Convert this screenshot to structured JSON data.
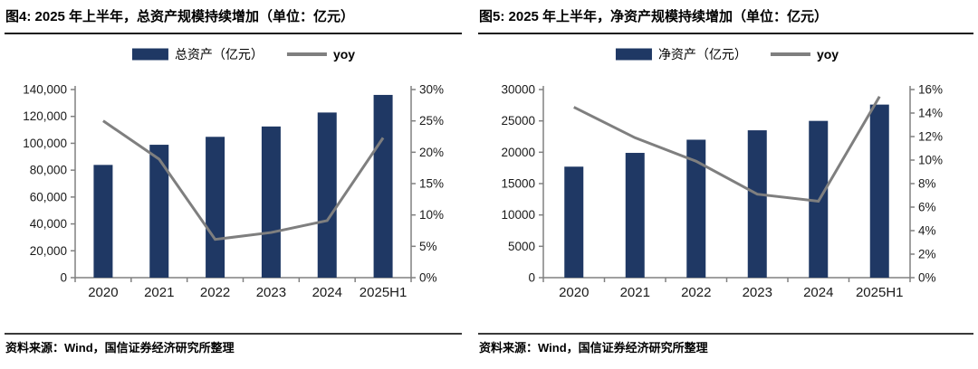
{
  "colors": {
    "bar": "#1f3864",
    "line": "#7f7f7f",
    "axis": "#808080",
    "tick_text": "#1a1a1a"
  },
  "figures": [
    {
      "source": "资料来源：Wind，国信证券经济研究所整理"
    },
    {
      "source": "资料来源：Wind，国信证券经济研究所整理"
    }
  ],
  "chart_data": [
    {
      "type": "combo",
      "title": "图4: 2025 年上半年，总资产规模持续增加（单位：亿元）",
      "categories": [
        "2020",
        "2021",
        "2022",
        "2023",
        "2024",
        "2025H1"
      ],
      "series": [
        {
          "name": "总资产（亿元）",
          "type": "bar",
          "axis": "left",
          "values": [
            83900,
            98900,
            104800,
            112500,
            122900,
            136000
          ]
        },
        {
          "name": "yoy",
          "type": "line",
          "axis": "right",
          "values": [
            25.0,
            18.9,
            6.1,
            7.2,
            9.1,
            22.3
          ],
          "unit": "%"
        }
      ],
      "left_axis": {
        "min": 0,
        "max": 140000,
        "step": 20000,
        "comma": true
      },
      "right_axis": {
        "min": 0,
        "max": 30,
        "step": 5,
        "unit": "%"
      },
      "legend_position": "top",
      "grid": false
    },
    {
      "type": "combo",
      "title": "图5: 2025 年上半年，净资产规模持续增加（单位：亿元）",
      "categories": [
        "2020",
        "2021",
        "2022",
        "2023",
        "2024",
        "2025H1"
      ],
      "series": [
        {
          "name": "净资产（亿元）",
          "type": "bar",
          "axis": "left",
          "values": [
            17700,
            19900,
            22000,
            23500,
            25000,
            27600
          ]
        },
        {
          "name": "yoy",
          "type": "line",
          "axis": "right",
          "values": [
            14.5,
            11.9,
            9.9,
            7.1,
            6.5,
            15.4
          ],
          "unit": "%"
        }
      ],
      "left_axis": {
        "min": 0,
        "max": 30000,
        "step": 5000,
        "comma": false
      },
      "right_axis": {
        "min": 0,
        "max": 16,
        "step": 2,
        "unit": "%"
      },
      "legend_position": "top",
      "grid": false
    }
  ]
}
